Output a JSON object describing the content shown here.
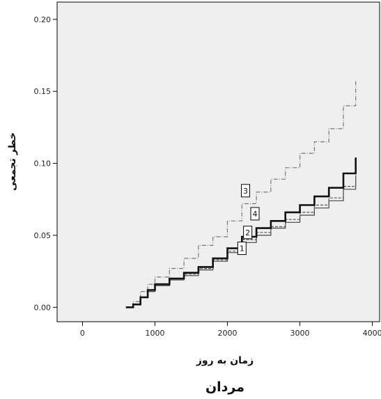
{
  "chart_data": {
    "type": "line",
    "title": "",
    "subtitle": "مردان",
    "xlabel": "زمان به روز",
    "ylabel": "خطر تجمعی",
    "xlim": [
      -350,
      4100
    ],
    "ylim": [
      -0.01,
      0.212
    ],
    "x_ticks": [
      0,
      1000,
      2000,
      3000,
      4000
    ],
    "x_tick_labels": [
      "0",
      "1000",
      "2000",
      "3000",
      "4000"
    ],
    "y_ticks": [
      0.0,
      0.05,
      0.1,
      0.15,
      0.2
    ],
    "y_tick_labels": [
      "0.00",
      "0.05",
      "0.10",
      "0.15",
      "0.20"
    ],
    "grid": false,
    "plot_background": "#efefef",
    "series": [
      {
        "name": "1",
        "style": "solid-thin",
        "color": "#444444",
        "x": [
          600,
          700,
          800,
          900,
          1000,
          1200,
          1400,
          1600,
          1800,
          2000,
          2200,
          2400,
          2600,
          2800,
          3000,
          3200,
          3400,
          3600,
          3770
        ],
        "y": [
          0.0,
          0.002,
          0.007,
          0.011,
          0.015,
          0.019,
          0.022,
          0.026,
          0.032,
          0.038,
          0.045,
          0.05,
          0.055,
          0.059,
          0.064,
          0.069,
          0.074,
          0.082,
          0.091
        ]
      },
      {
        "name": "2",
        "style": "dashed",
        "color": "#555555",
        "x": [
          600,
          700,
          800,
          900,
          1000,
          1200,
          1400,
          1600,
          1800,
          2000,
          2200,
          2400,
          2600,
          2800,
          3000,
          3200,
          3400,
          3600,
          3770
        ],
        "y": [
          0.0,
          0.002,
          0.007,
          0.011,
          0.016,
          0.02,
          0.023,
          0.027,
          0.033,
          0.039,
          0.047,
          0.052,
          0.056,
          0.061,
          0.066,
          0.071,
          0.076,
          0.084,
          0.093
        ]
      },
      {
        "name": "3",
        "style": "dash-dot",
        "color": "#777777",
        "x": [
          600,
          700,
          800,
          900,
          1000,
          1200,
          1400,
          1600,
          1800,
          2000,
          2200,
          2400,
          2600,
          2800,
          3000,
          3200,
          3400,
          3600,
          3770
        ],
        "y": [
          0.0,
          0.004,
          0.011,
          0.016,
          0.021,
          0.027,
          0.034,
          0.043,
          0.049,
          0.06,
          0.072,
          0.08,
          0.089,
          0.097,
          0.107,
          0.115,
          0.124,
          0.14,
          0.157
        ]
      },
      {
        "name": "4",
        "style": "solid-thick",
        "color": "#111111",
        "x": [
          600,
          700,
          800,
          900,
          1000,
          1200,
          1400,
          1600,
          1800,
          2000,
          2200,
          2400,
          2600,
          2800,
          3000,
          3200,
          3400,
          3600,
          3770
        ],
        "y": [
          0.0,
          0.002,
          0.007,
          0.012,
          0.016,
          0.02,
          0.024,
          0.028,
          0.034,
          0.041,
          0.049,
          0.055,
          0.06,
          0.066,
          0.071,
          0.077,
          0.083,
          0.093,
          0.104
        ]
      }
    ],
    "series_labels": [
      {
        "text": "3",
        "x": 2250,
        "y": 0.081
      },
      {
        "text": "4",
        "x": 2380,
        "y": 0.065
      },
      {
        "text": "2",
        "x": 2280,
        "y": 0.052
      },
      {
        "text": "1",
        "x": 2200,
        "y": 0.041
      }
    ]
  }
}
